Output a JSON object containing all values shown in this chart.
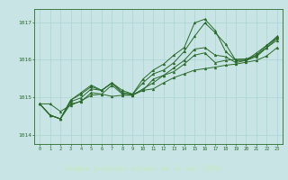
{
  "bg_color": "#c8e4e4",
  "plot_bg": "#c8e4e4",
  "line_color": "#2a6a2a",
  "grid_color": "#aad4d4",
  "bottom_bar_color": "#2a5a2a",
  "xlabel_color": "#c8e8c8",
  "ylim": [
    1013.75,
    1017.35
  ],
  "xlim": [
    -0.5,
    23.5
  ],
  "yticks": [
    1014,
    1015,
    1016,
    1017
  ],
  "xticks": [
    0,
    1,
    2,
    3,
    4,
    5,
    6,
    7,
    8,
    9,
    10,
    11,
    12,
    13,
    14,
    15,
    16,
    17,
    18,
    19,
    20,
    21,
    22,
    23
  ],
  "xlabel": "Graphe pression niveau de la mer (hPa)",
  "series": [
    [
      1014.82,
      1014.82,
      1014.62,
      1014.78,
      1014.9,
      1015.05,
      1015.08,
      1015.02,
      1015.05,
      1015.05,
      1015.18,
      1015.22,
      1015.38,
      1015.52,
      1015.62,
      1015.72,
      1015.76,
      1015.8,
      1015.85,
      1015.88,
      1015.93,
      1015.98,
      1016.1,
      1016.32
    ],
    [
      1014.82,
      1014.52,
      1014.42,
      1014.82,
      1014.88,
      1015.12,
      1015.08,
      1015.32,
      1015.08,
      1015.05,
      1015.22,
      1015.38,
      1015.58,
      1015.68,
      1015.88,
      1016.12,
      1016.18,
      1015.92,
      1015.98,
      1016.01,
      1016.02,
      1016.12,
      1016.38,
      1016.58
    ],
    [
      1014.82,
      1014.52,
      1014.42,
      1014.88,
      1014.98,
      1015.22,
      1015.18,
      1015.38,
      1015.18,
      1015.08,
      1015.18,
      1015.48,
      1015.58,
      1015.78,
      1015.98,
      1016.28,
      1016.32,
      1016.12,
      1016.08,
      1015.92,
      1015.98,
      1016.08,
      1016.32,
      1016.52
    ],
    [
      1014.82,
      1014.52,
      1014.42,
      1014.92,
      1015.08,
      1015.28,
      1015.18,
      1015.38,
      1015.12,
      1015.08,
      1015.38,
      1015.62,
      1015.72,
      1015.92,
      1016.22,
      1016.62,
      1016.98,
      1016.72,
      1016.42,
      1015.98,
      1015.98,
      1016.12,
      1016.32,
      1016.58
    ],
    [
      1014.82,
      1014.52,
      1014.42,
      1014.92,
      1015.12,
      1015.32,
      1015.18,
      1015.38,
      1015.12,
      1015.08,
      1015.48,
      1015.72,
      1015.88,
      1016.12,
      1016.32,
      1016.98,
      1017.08,
      1016.78,
      1016.22,
      1015.98,
      1015.98,
      1016.18,
      1016.38,
      1016.62
    ]
  ]
}
